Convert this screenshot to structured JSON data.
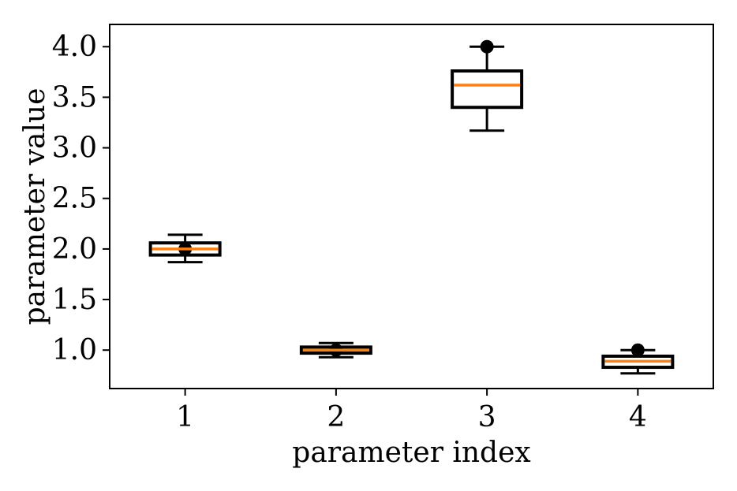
{
  "chart_data": {
    "type": "box",
    "title": "",
    "xlabel": "parameter index",
    "ylabel": "parameter value",
    "ylim": [
      0.62,
      4.22
    ],
    "y_ticks": [
      1.0,
      1.5,
      2.0,
      2.5,
      3.0,
      3.5,
      4.0
    ],
    "y_tick_labels": [
      "1.0",
      "1.5",
      "2.0",
      "2.5",
      "3.0",
      "3.5",
      "4.0"
    ],
    "categories": [
      "1",
      "2",
      "3",
      "4"
    ],
    "boxes": [
      {
        "category": "1",
        "whisker_low": 1.87,
        "q1": 1.94,
        "median": 2.0,
        "q3": 2.06,
        "whisker_high": 2.14,
        "marker": 2.0
      },
      {
        "category": "2",
        "whisker_low": 0.93,
        "q1": 0.97,
        "median": 1.0,
        "q3": 1.03,
        "whisker_high": 1.07,
        "marker": 1.0
      },
      {
        "category": "3",
        "whisker_low": 3.17,
        "q1": 3.4,
        "median": 3.62,
        "q3": 3.76,
        "whisker_high": 4.0,
        "marker": 4.0
      },
      {
        "category": "4",
        "whisker_low": 0.77,
        "q1": 0.83,
        "median": 0.89,
        "q3": 0.94,
        "whisker_high": 1.0,
        "marker": 1.0
      }
    ],
    "grid": false,
    "colors": {
      "box": "#000000",
      "median": "#ff7f0e",
      "marker": "#000000"
    }
  }
}
